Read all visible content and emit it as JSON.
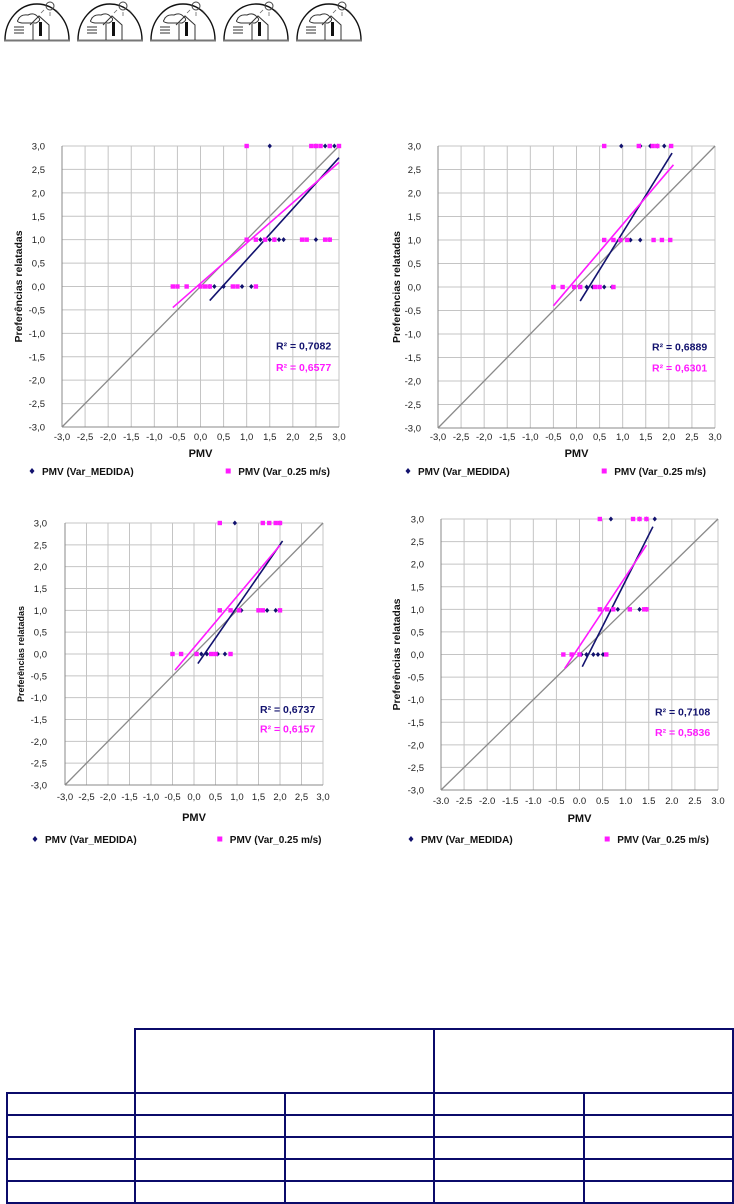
{
  "icons": [
    "house-climate-icon",
    "house-climate-icon",
    "house-climate-icon",
    "house-climate-icon",
    "house-climate-icon"
  ],
  "colors": {
    "medida": "#12126e",
    "var025": "#ff1aff",
    "grid": "#c4c4c4",
    "diagonal": "#8a8a8a",
    "table_border": "#0b0b6a"
  },
  "chart_data": [
    {
      "type": "scatter",
      "xlabel": "PMV",
      "ylabel": "Preferências relatadas",
      "xlim": [
        -3,
        3
      ],
      "ylim": [
        -3,
        3
      ],
      "grid": true,
      "legend": "bottom",
      "xticks": [
        "-3,0",
        "-2,5",
        "-2,0",
        "-1,5",
        "-1,0",
        "-0,5",
        "0,0",
        "0,5",
        "1,0",
        "1,5",
        "2,0",
        "2,5",
        "3,0"
      ],
      "yticks": [
        "3,0",
        "2,5",
        "2,0",
        "1,5",
        "1,0",
        "0,5",
        "0,0",
        "-0,5",
        "-1,0",
        "-1,5",
        "-2,0",
        "-2,5",
        "-3,0"
      ],
      "series": [
        {
          "name": "PMV (Var_MEDIDA)",
          "r2": "R² = 0,7082",
          "points": [
            [
              1.5,
              3
            ],
            [
              2.5,
              3
            ],
            [
              2.7,
              3
            ],
            [
              2.9,
              3
            ],
            [
              1.3,
              1
            ],
            [
              1.5,
              1
            ],
            [
              1.6,
              1
            ],
            [
              1.7,
              1
            ],
            [
              1.8,
              1
            ],
            [
              2.5,
              1
            ],
            [
              2.8,
              1
            ],
            [
              0.2,
              0
            ],
            [
              0.3,
              0
            ],
            [
              0.5,
              0
            ],
            [
              0.9,
              0
            ],
            [
              1.1,
              0
            ]
          ],
          "trend": [
            [
              0.2,
              -0.3
            ],
            [
              3.0,
              2.75
            ]
          ]
        },
        {
          "name": "PMV (Var_0.25 m/s)",
          "r2": "R² = 0,6577",
          "points": [
            [
              1.0,
              3
            ],
            [
              2.4,
              3
            ],
            [
              2.5,
              3
            ],
            [
              2.6,
              3
            ],
            [
              2.8,
              3
            ],
            [
              3.0,
              3
            ],
            [
              1.0,
              1
            ],
            [
              1.2,
              1
            ],
            [
              1.4,
              1
            ],
            [
              1.6,
              1
            ],
            [
              2.2,
              1
            ],
            [
              2.3,
              1
            ],
            [
              2.7,
              1
            ],
            [
              2.8,
              1
            ],
            [
              -0.6,
              0
            ],
            [
              -0.5,
              0
            ],
            [
              -0.3,
              0
            ],
            [
              0.0,
              0
            ],
            [
              0.1,
              0
            ],
            [
              0.2,
              0
            ],
            [
              0.7,
              0
            ],
            [
              0.8,
              0
            ],
            [
              1.2,
              0
            ]
          ],
          "trend": [
            [
              -0.6,
              -0.45
            ],
            [
              3.0,
              2.65
            ]
          ]
        }
      ]
    },
    {
      "type": "scatter",
      "xlabel": "PMV",
      "ylabel": "Preferências relatadas",
      "xlim": [
        -3,
        3
      ],
      "ylim": [
        -3,
        3
      ],
      "grid": true,
      "legend": "bottom",
      "xticks": [
        "-3,0",
        "-2,5",
        "-2,0",
        "-1,5",
        "-1,0",
        "-0,5",
        "0,0",
        "0,5",
        "1,0",
        "1,5",
        "2,0",
        "2,5",
        "3,0"
      ],
      "yticks": [
        "3,0",
        "2,5",
        "2,0",
        "1,5",
        "1,0",
        "0,5",
        "0,0",
        "-0,5",
        "-1,0",
        "-1,5",
        "-2,0",
        "-2,5",
        "-3,0"
      ],
      "series": [
        {
          "name": "PMV (Var_MEDIDA)",
          "r2": "R² = 0,6889",
          "points": [
            [
              0.97,
              3
            ],
            [
              1.38,
              3
            ],
            [
              1.6,
              3
            ],
            [
              1.75,
              3
            ],
            [
              1.9,
              3
            ],
            [
              1.17,
              1
            ],
            [
              1.38,
              1
            ],
            [
              0.22,
              0
            ],
            [
              0.35,
              0
            ],
            [
              0.6,
              0
            ],
            [
              0.77,
              0
            ]
          ],
          "trend": [
            [
              0.08,
              -0.3
            ],
            [
              2.07,
              2.85
            ]
          ]
        },
        {
          "name": "PMV (Var_0.25 m/s)",
          "r2": "R² = 0,6301",
          "points": [
            [
              0.6,
              3
            ],
            [
              1.35,
              3
            ],
            [
              1.65,
              3
            ],
            [
              1.75,
              3
            ],
            [
              2.05,
              3
            ],
            [
              0.6,
              1
            ],
            [
              0.8,
              1
            ],
            [
              0.95,
              1
            ],
            [
              1.1,
              1
            ],
            [
              1.67,
              1
            ],
            [
              1.85,
              1
            ],
            [
              2.03,
              1
            ],
            [
              -0.5,
              0
            ],
            [
              -0.3,
              0
            ],
            [
              -0.05,
              0
            ],
            [
              0.08,
              0
            ],
            [
              0.4,
              0
            ],
            [
              0.5,
              0
            ],
            [
              0.8,
              0
            ]
          ],
          "trend": [
            [
              -0.5,
              -0.4
            ],
            [
              2.1,
              2.6
            ]
          ]
        }
      ]
    },
    {
      "type": "scatter",
      "xlabel": "PMV",
      "ylabel": "Preferências relatadas",
      "xlim": [
        -3,
        3
      ],
      "ylim": [
        -3,
        3
      ],
      "grid": true,
      "legend": "bottom",
      "xticks": [
        "-3,0",
        "-2,5",
        "-2,0",
        "-1,5",
        "-1,0",
        "-0,5",
        "0,0",
        "0,5",
        "1,0",
        "1,5",
        "2,0",
        "2,5",
        "3,0"
      ],
      "yticks": [
        "3,0",
        "2,5",
        "2,0",
        "1,5",
        "1,0",
        "0,5",
        "0,0",
        "-0,5",
        "-1,0",
        "-1,5",
        "-2,0",
        "-2,5",
        "-3,0"
      ],
      "series": [
        {
          "name": "PMV (Var_MEDIDA)",
          "r2": "R² = 0,6737",
          "points": [
            [
              0.95,
              3
            ],
            [
              2.0,
              3
            ],
            [
              1.1,
              1
            ],
            [
              1.7,
              1
            ],
            [
              1.9,
              1
            ],
            [
              0.17,
              0
            ],
            [
              0.3,
              0
            ],
            [
              0.55,
              0
            ],
            [
              0.72,
              0
            ]
          ],
          "trend": [
            [
              0.09,
              -0.22
            ],
            [
              2.06,
              2.59
            ]
          ]
        },
        {
          "name": "PMV (Var_0.25 m/s)",
          "r2": "R² = 0,6157",
          "points": [
            [
              0.6,
              3
            ],
            [
              1.6,
              3
            ],
            [
              1.75,
              3
            ],
            [
              1.9,
              3
            ],
            [
              2.0,
              3
            ],
            [
              0.6,
              1
            ],
            [
              0.85,
              1
            ],
            [
              1.05,
              1
            ],
            [
              1.5,
              1
            ],
            [
              1.6,
              1
            ],
            [
              2.0,
              1
            ],
            [
              -0.5,
              0
            ],
            [
              -0.3,
              0
            ],
            [
              0.06,
              0
            ],
            [
              0.4,
              0
            ],
            [
              0.5,
              0
            ],
            [
              0.85,
              0
            ]
          ],
          "trend": [
            [
              -0.44,
              -0.37
            ],
            [
              2.0,
              2.49
            ]
          ]
        }
      ]
    },
    {
      "type": "scatter",
      "xlabel": "PMV",
      "ylabel": "Preferências relatadas",
      "xlim": [
        -3,
        3
      ],
      "ylim": [
        -3,
        3
      ],
      "grid": true,
      "legend": "bottom",
      "xticks": [
        "-3.0",
        "-2.5",
        "-2.0",
        "-1.5",
        "-1.0",
        "-0.5",
        "0.0",
        "0.5",
        "1.0",
        "1.5",
        "2.0",
        "2.5",
        "3.0"
      ],
      "yticks": [
        "3,0",
        "2,5",
        "2,0",
        "1,5",
        "1,0",
        "0,5",
        "0,0",
        "-0,5",
        "-1,0",
        "-1,5",
        "-2,0",
        "-2,5",
        "-3,0"
      ],
      "series": [
        {
          "name": "PMV (Var_MEDIDA)",
          "r2": "R² = 0,7108",
          "points": [
            [
              0.68,
              3
            ],
            [
              1.3,
              3
            ],
            [
              1.45,
              3
            ],
            [
              1.63,
              3
            ],
            [
              0.83,
              1
            ],
            [
              1.3,
              1
            ],
            [
              1.45,
              1
            ],
            [
              0.04,
              0
            ],
            [
              0.15,
              0
            ],
            [
              0.3,
              0
            ],
            [
              0.4,
              0
            ],
            [
              0.51,
              0
            ]
          ],
          "trend": [
            [
              0.06,
              -0.27
            ],
            [
              1.59,
              2.83
            ]
          ]
        },
        {
          "name": "PMV (Var_0.25 m/s)",
          "r2": "R² = 0,5836",
          "points": [
            [
              0.44,
              3
            ],
            [
              1.16,
              3
            ],
            [
              1.3,
              3
            ],
            [
              1.45,
              3
            ],
            [
              0.44,
              1
            ],
            [
              0.6,
              1
            ],
            [
              0.73,
              1
            ],
            [
              1.09,
              1
            ],
            [
              1.4,
              1
            ],
            [
              1.45,
              1
            ],
            [
              -0.35,
              0
            ],
            [
              -0.17,
              0
            ],
            [
              0.0,
              0
            ],
            [
              0.58,
              0
            ]
          ],
          "trend": [
            [
              -0.32,
              -0.31
            ],
            [
              1.45,
              2.42
            ]
          ]
        }
      ]
    }
  ],
  "table": {
    "header_cells": [
      "",
      ""
    ],
    "rows": [
      [
        "",
        "",
        "",
        "",
        ""
      ],
      [
        "",
        "",
        "",
        "",
        ""
      ],
      [
        "",
        "",
        "",
        "",
        ""
      ],
      [
        "",
        "",
        "",
        "",
        ""
      ],
      [
        "",
        "",
        "",
        "",
        ""
      ]
    ]
  }
}
